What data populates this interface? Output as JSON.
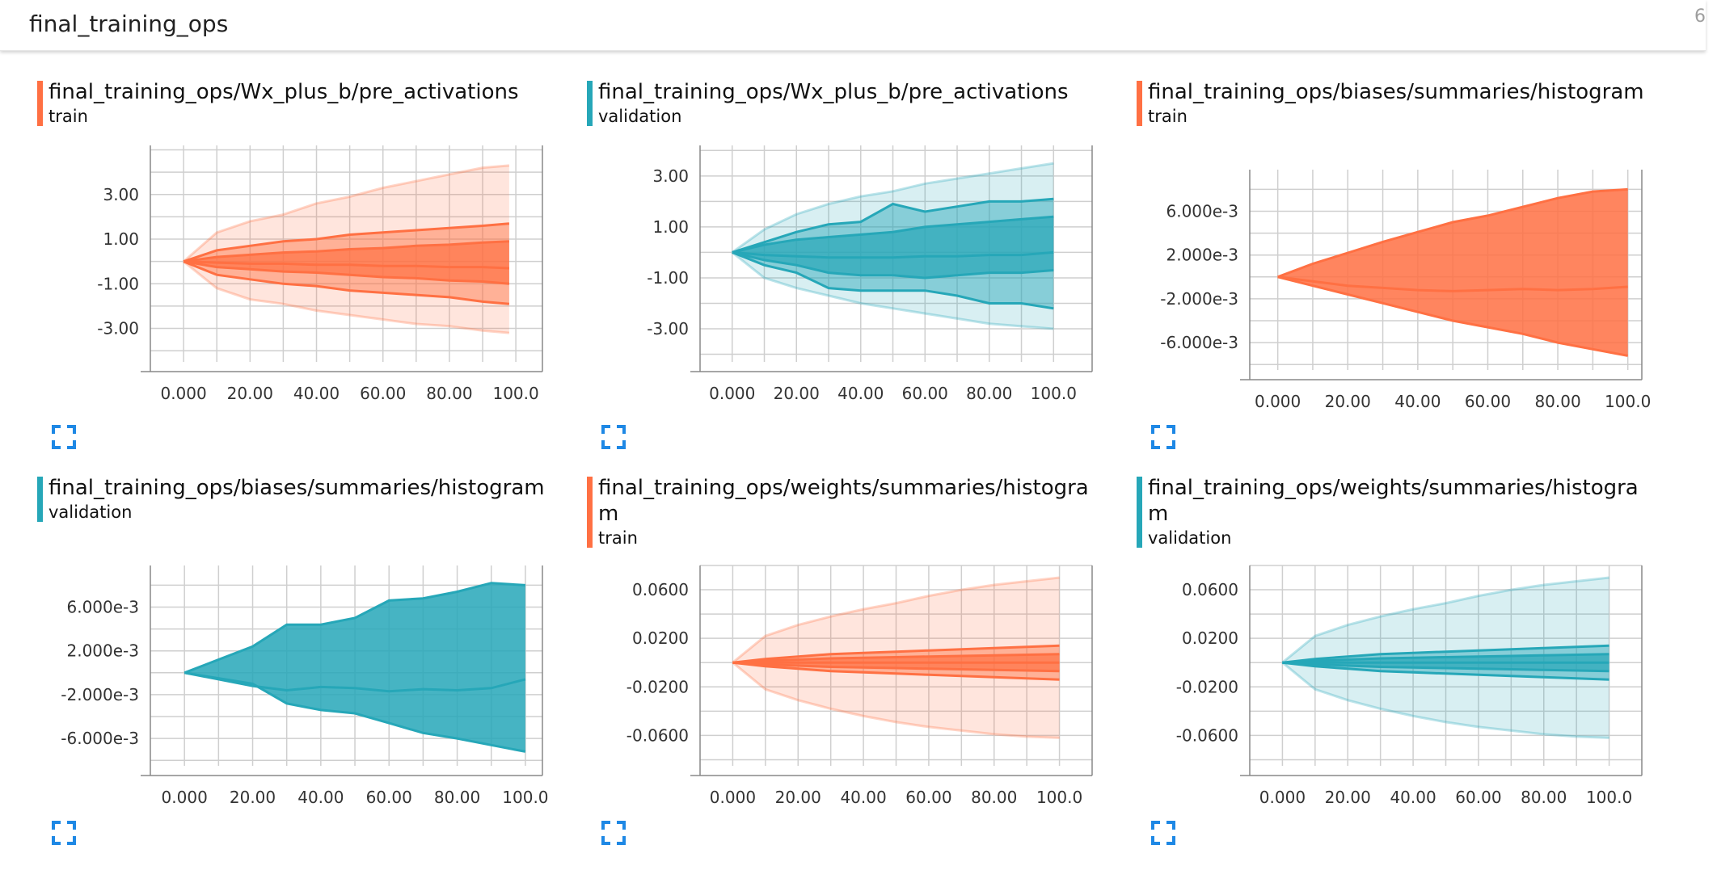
{
  "header": {
    "title": "final_training_ops",
    "count": "6"
  },
  "colors": {
    "train": "#ff7043",
    "validation": "#26a7b8",
    "grid": "#cfcfcf",
    "expand_icon": "#1e88e5"
  },
  "chart_data": [
    {
      "type": "area",
      "title": "final_training_ops/Wx_plus_b/pre_activations",
      "run": "train",
      "color": "#ff7043",
      "xlim": [
        -10,
        108
      ],
      "ylim": [
        -4.5,
        5.2
      ],
      "xticks": [
        0,
        20,
        40,
        60,
        80,
        100
      ],
      "xtick_labels": [
        "0.000",
        "20.00",
        "40.00",
        "60.00",
        "80.00",
        "100.0"
      ],
      "yticks": [
        3,
        1,
        -1,
        -3
      ],
      "ytick_labels": [
        "3.00",
        "1.00",
        "-1.00",
        "-3.00"
      ],
      "x": [
        0,
        10,
        20,
        30,
        40,
        50,
        60,
        70,
        80,
        90,
        98
      ],
      "percentile_lines": [
        [
          0,
          -1.2,
          -1.7,
          -1.9,
          -2.2,
          -2.4,
          -2.6,
          -2.8,
          -2.9,
          -3.1,
          -3.2
        ],
        [
          0,
          -0.6,
          -0.8,
          -1.0,
          -1.1,
          -1.3,
          -1.4,
          -1.5,
          -1.6,
          -1.8,
          -1.9
        ],
        [
          0,
          -0.25,
          -0.35,
          -0.45,
          -0.5,
          -0.6,
          -0.7,
          -0.75,
          -0.85,
          -0.9,
          -1.0
        ],
        [
          0,
          -0.05,
          -0.1,
          -0.1,
          -0.15,
          -0.15,
          -0.2,
          -0.2,
          -0.25,
          -0.25,
          -0.3
        ],
        [
          0,
          0.2,
          0.3,
          0.4,
          0.45,
          0.55,
          0.6,
          0.7,
          0.75,
          0.85,
          0.9
        ],
        [
          0,
          0.5,
          0.7,
          0.9,
          1.0,
          1.2,
          1.3,
          1.4,
          1.5,
          1.6,
          1.7
        ],
        [
          0,
          1.3,
          1.8,
          2.1,
          2.6,
          2.9,
          3.3,
          3.6,
          3.9,
          4.2,
          4.3
        ]
      ]
    },
    {
      "type": "area",
      "title": "final_training_ops/Wx_plus_b/pre_activations",
      "run": "validation",
      "color": "#26a7b8",
      "xlim": [
        -10,
        112
      ],
      "ylim": [
        -4.3,
        4.2
      ],
      "xticks": [
        0,
        20,
        40,
        60,
        80,
        100
      ],
      "xtick_labels": [
        "0.000",
        "20.00",
        "40.00",
        "60.00",
        "80.00",
        "100.0"
      ],
      "yticks": [
        3,
        1,
        -1,
        -3
      ],
      "ytick_labels": [
        "3.00",
        "1.00",
        "-1.00",
        "-3.00"
      ],
      "x": [
        0,
        10,
        20,
        30,
        40,
        50,
        60,
        70,
        80,
        90,
        100
      ],
      "percentile_lines": [
        [
          0,
          -1.0,
          -1.4,
          -1.7,
          -2.0,
          -2.2,
          -2.4,
          -2.6,
          -2.8,
          -2.9,
          -3.0
        ],
        [
          0,
          -0.5,
          -0.8,
          -1.4,
          -1.5,
          -1.5,
          -1.5,
          -1.7,
          -2.0,
          -2.0,
          -2.2
        ],
        [
          0,
          -0.3,
          -0.5,
          -0.8,
          -0.9,
          -0.9,
          -1.0,
          -0.9,
          -0.8,
          -0.8,
          -0.7
        ],
        [
          0,
          -0.1,
          -0.15,
          -0.2,
          -0.2,
          -0.2,
          -0.15,
          -0.15,
          -0.1,
          -0.1,
          0.0
        ],
        [
          0,
          0.3,
          0.5,
          0.6,
          0.7,
          0.8,
          1.0,
          1.1,
          1.2,
          1.3,
          1.4
        ],
        [
          0,
          0.4,
          0.8,
          1.1,
          1.2,
          1.9,
          1.6,
          1.8,
          2.0,
          2.0,
          2.1
        ],
        [
          0,
          0.9,
          1.5,
          1.9,
          2.2,
          2.4,
          2.7,
          2.9,
          3.1,
          3.3,
          3.5
        ]
      ]
    },
    {
      "type": "area",
      "title": "final_training_ops/biases/summaries/histogram",
      "run": "train",
      "color": "#ff7043",
      "xlim": [
        -8,
        104
      ],
      "ylim": [
        -0.0085,
        0.0098
      ],
      "xticks": [
        0,
        20,
        40,
        60,
        80,
        100
      ],
      "xtick_labels": [
        "0.000",
        "20.00",
        "40.00",
        "60.00",
        "80.00",
        "100.0"
      ],
      "yticks": [
        0.006,
        0.002,
        -0.002,
        -0.006
      ],
      "ytick_labels": [
        "6.000e-3",
        "2.000e-3",
        "-2.000e-3",
        "-6.000e-3"
      ],
      "x": [
        0,
        10,
        20,
        30,
        40,
        50,
        60,
        70,
        80,
        90,
        100
      ],
      "percentile_lines": [
        [
          0,
          -0.0008,
          -0.0016,
          -0.0024,
          -0.0032,
          -0.004,
          -0.0046,
          -0.0052,
          -0.006,
          -0.0066,
          -0.0072
        ],
        [
          0,
          -0.0004,
          -0.0008,
          -0.001,
          -0.0012,
          -0.0013,
          -0.0012,
          -0.0011,
          -0.0012,
          -0.0011,
          -0.0009
        ],
        [
          0,
          0.0012,
          0.0022,
          0.0032,
          0.0041,
          0.005,
          0.0056,
          0.0064,
          0.0072,
          0.0078,
          0.008
        ]
      ]
    },
    {
      "type": "area",
      "title": "final_training_ops/biases/summaries/histogram",
      "run": "validation",
      "color": "#26a7b8",
      "xlim": [
        -10,
        105
      ],
      "ylim": [
        -0.0085,
        0.0098
      ],
      "xticks": [
        0,
        20,
        40,
        60,
        80,
        100
      ],
      "xtick_labels": [
        "0.000",
        "20.00",
        "40.00",
        "60.00",
        "80.00",
        "100.0"
      ],
      "yticks": [
        0.006,
        0.002,
        -0.002,
        -0.006
      ],
      "ytick_labels": [
        "6.000e-3",
        "2.000e-3",
        "-2.000e-3",
        "-6.000e-3"
      ],
      "x": [
        0,
        10,
        20,
        30,
        40,
        50,
        60,
        70,
        80,
        90,
        100
      ],
      "percentile_lines": [
        [
          0,
          -0.0005,
          -0.001,
          -0.0028,
          -0.0034,
          -0.0037,
          -0.0046,
          -0.0055,
          -0.006,
          -0.0066,
          -0.0072
        ],
        [
          0,
          -0.0006,
          -0.0012,
          -0.0016,
          -0.0013,
          -0.0014,
          -0.0017,
          -0.0015,
          -0.0016,
          -0.0014,
          -0.0006
        ],
        [
          0,
          0.0012,
          0.0024,
          0.0044,
          0.0044,
          0.005,
          0.0066,
          0.0068,
          0.0074,
          0.0082,
          0.008
        ]
      ]
    },
    {
      "type": "area",
      "title": "final_training_ops/weights/summaries/histogram",
      "run": "train",
      "color": "#ff7043",
      "xlim": [
        -10,
        110
      ],
      "ylim": [
        -0.085,
        0.08
      ],
      "xticks": [
        0,
        20,
        40,
        60,
        80,
        100
      ],
      "xtick_labels": [
        "0.000",
        "20.00",
        "40.00",
        "60.00",
        "80.00",
        "100.0"
      ],
      "yticks": [
        0.06,
        0.02,
        -0.02,
        -0.06
      ],
      "ytick_labels": [
        "0.0600",
        "0.0200",
        "-0.0200",
        "-0.0600"
      ],
      "x": [
        0,
        10,
        20,
        30,
        40,
        50,
        60,
        70,
        80,
        90,
        100
      ],
      "percentile_lines": [
        [
          0,
          -0.022,
          -0.031,
          -0.038,
          -0.044,
          -0.049,
          -0.053,
          -0.056,
          -0.059,
          -0.061,
          -0.062
        ],
        [
          0,
          -0.003,
          -0.005,
          -0.007,
          -0.008,
          -0.009,
          -0.01,
          -0.011,
          -0.012,
          -0.013,
          -0.014
        ],
        [
          0,
          -0.0015,
          -0.0025,
          -0.0035,
          -0.004,
          -0.0045,
          -0.005,
          -0.0055,
          -0.006,
          -0.0065,
          -0.007
        ],
        [
          0,
          0,
          0,
          0,
          0,
          0,
          0,
          0,
          0,
          0,
          0
        ],
        [
          0,
          0.0015,
          0.0025,
          0.0035,
          0.004,
          0.0045,
          0.005,
          0.0055,
          0.006,
          0.0065,
          0.007
        ],
        [
          0,
          0.003,
          0.005,
          0.007,
          0.008,
          0.009,
          0.01,
          0.011,
          0.012,
          0.013,
          0.014
        ],
        [
          0,
          0.022,
          0.031,
          0.038,
          0.044,
          0.049,
          0.055,
          0.06,
          0.064,
          0.067,
          0.07
        ]
      ]
    },
    {
      "type": "area",
      "title": "final_training_ops/weights/summaries/histogram",
      "run": "validation",
      "color": "#26a7b8",
      "xlim": [
        -10,
        110
      ],
      "ylim": [
        -0.085,
        0.08
      ],
      "xticks": [
        0,
        20,
        40,
        60,
        80,
        100
      ],
      "xtick_labels": [
        "0.000",
        "20.00",
        "40.00",
        "60.00",
        "80.00",
        "100.0"
      ],
      "yticks": [
        0.06,
        0.02,
        -0.02,
        -0.06
      ],
      "ytick_labels": [
        "0.0600",
        "0.0200",
        "-0.0200",
        "-0.0600"
      ],
      "x": [
        0,
        10,
        20,
        30,
        40,
        50,
        60,
        70,
        80,
        90,
        100
      ],
      "percentile_lines": [
        [
          0,
          -0.022,
          -0.031,
          -0.038,
          -0.044,
          -0.049,
          -0.053,
          -0.056,
          -0.059,
          -0.061,
          -0.062
        ],
        [
          0,
          -0.003,
          -0.005,
          -0.007,
          -0.008,
          -0.009,
          -0.01,
          -0.011,
          -0.012,
          -0.013,
          -0.014
        ],
        [
          0,
          -0.0015,
          -0.0025,
          -0.0035,
          -0.004,
          -0.0045,
          -0.005,
          -0.0055,
          -0.006,
          -0.0065,
          -0.007
        ],
        [
          0,
          0,
          0,
          0,
          0,
          0,
          0,
          0,
          0,
          0,
          0
        ],
        [
          0,
          0.0015,
          0.0025,
          0.0035,
          0.004,
          0.0045,
          0.005,
          0.0055,
          0.006,
          0.0065,
          0.007
        ],
        [
          0,
          0.003,
          0.005,
          0.007,
          0.008,
          0.009,
          0.01,
          0.011,
          0.012,
          0.013,
          0.014
        ],
        [
          0,
          0.022,
          0.031,
          0.038,
          0.044,
          0.049,
          0.055,
          0.06,
          0.064,
          0.067,
          0.07
        ]
      ]
    }
  ]
}
